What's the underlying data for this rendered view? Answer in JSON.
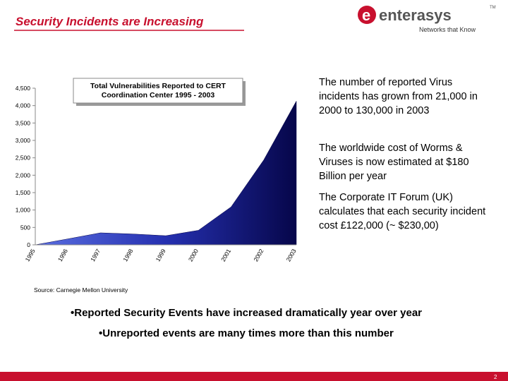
{
  "slide_title": "Security Incidents are Increasing",
  "logo": {
    "name": "enterasys",
    "tagline": "Networks that Know",
    "tm": "TM"
  },
  "chart_data": {
    "type": "area",
    "title": "Total Vulnerabilities Reported to CERT Coordination Center 1995 - 2003",
    "categories": [
      "1995",
      "1996",
      "1997",
      "1998",
      "1999",
      "2000",
      "2001",
      "2002",
      "2003"
    ],
    "values": [
      0,
      171,
      345,
      311,
      262,
      417,
      1090,
      2437,
      4129
    ],
    "color": "#06064a",
    "ylim": [
      0,
      4500
    ],
    "yticks": [
      0,
      500,
      {
        "value": 1000,
        "label": "1,000"
      },
      {
        "value": 1500,
        "label": "1,500"
      },
      {
        "value": 2000,
        "label": "2,000"
      },
      {
        "value": 2500,
        "label": "2,500"
      },
      {
        "value": 3000,
        "label": "3,000"
      },
      {
        "value": 3500,
        "label": "3,500"
      },
      {
        "value": 4000,
        "label": "4,000"
      },
      {
        "value": 4500,
        "label": "4,500"
      }
    ]
  },
  "paragraphs": [
    "The number of reported Virus incidents has grown from 21,000 in 2000 to 130,000 in 2003",
    "The worldwide cost of Worms & Viruses is now estimated at $180 Billion per year",
    "The Corporate IT Forum (UK) calculates that each security incident cost £122,000 (~ $230,00)"
  ],
  "source": "Source: Carnegie Mellon University",
  "bullets": [
    "•Reported Security Events have increased dramatically year over year",
    "•Unreported events are many times more than this number"
  ],
  "page_number": "2"
}
